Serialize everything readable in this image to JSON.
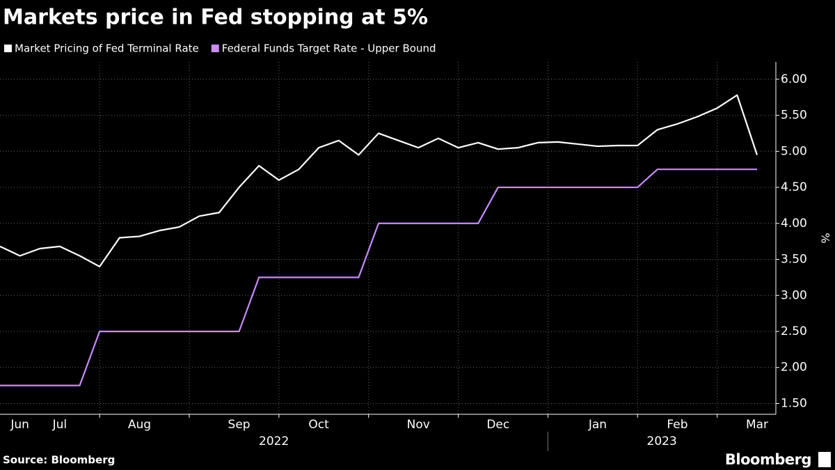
{
  "chart_data": {
    "type": "line",
    "title": "Markets price in Fed stopping at 5%",
    "source": "Source: Bloomberg",
    "brand": "Bloomberg",
    "y_label": "%",
    "categories": [
      null,
      "Jun",
      null,
      "Jul",
      null,
      null,
      null,
      "Aug",
      null,
      null,
      null,
      null,
      "Sep",
      null,
      null,
      null,
      "Oct",
      null,
      null,
      null,
      null,
      "Nov",
      null,
      null,
      null,
      "Dec",
      null,
      null,
      null,
      null,
      "Jan",
      null,
      null,
      null,
      "Feb",
      null,
      null,
      null,
      "Mar"
    ],
    "year_labels": [
      "2022",
      "2023"
    ],
    "series": [
      {
        "name": "Market Pricing of Fed Terminal Rate",
        "color": "#ffffff",
        "values": [
          3.68,
          3.55,
          3.65,
          3.68,
          3.55,
          3.4,
          3.8,
          3.82,
          3.9,
          3.95,
          4.1,
          4.15,
          4.5,
          4.8,
          4.6,
          4.75,
          5.05,
          5.15,
          4.95,
          5.25,
          5.15,
          5.05,
          5.18,
          5.05,
          5.12,
          5.03,
          5.05,
          5.12,
          5.13,
          5.1,
          5.07,
          5.08,
          5.08,
          5.3,
          5.38,
          5.48,
          5.6,
          5.78,
          4.95
        ]
      },
      {
        "name": "Federal Funds Target Rate - Upper Bound",
        "color": "#c98cff",
        "values": [
          1.75,
          1.75,
          1.75,
          1.75,
          1.75,
          2.5,
          2.5,
          2.5,
          2.5,
          2.5,
          2.5,
          2.5,
          2.5,
          3.25,
          3.25,
          3.25,
          3.25,
          3.25,
          3.25,
          4.0,
          4.0,
          4.0,
          4.0,
          4.0,
          4.0,
          4.5,
          4.5,
          4.5,
          4.5,
          4.5,
          4.5,
          4.5,
          4.5,
          4.75,
          4.75,
          4.75,
          4.75,
          4.75,
          4.75
        ]
      }
    ],
    "ylim": [
      1.35,
      6.24
    ],
    "yticks": [
      {
        "value": 1.5,
        "label": "1.50"
      },
      {
        "value": 2,
        "label": "2.00"
      },
      {
        "value": 2.5,
        "label": "2.50"
      },
      {
        "value": 3,
        "label": "3.00"
      },
      {
        "value": 3.5,
        "label": "3.50"
      },
      {
        "value": 4,
        "label": "4.00"
      },
      {
        "value": 4.5,
        "label": "4.50"
      },
      {
        "value": 5,
        "label": "5.00"
      },
      {
        "value": 5.5,
        "label": "5.50"
      },
      {
        "value": 6,
        "label": "6.00"
      }
    ],
    "grid": true
  }
}
